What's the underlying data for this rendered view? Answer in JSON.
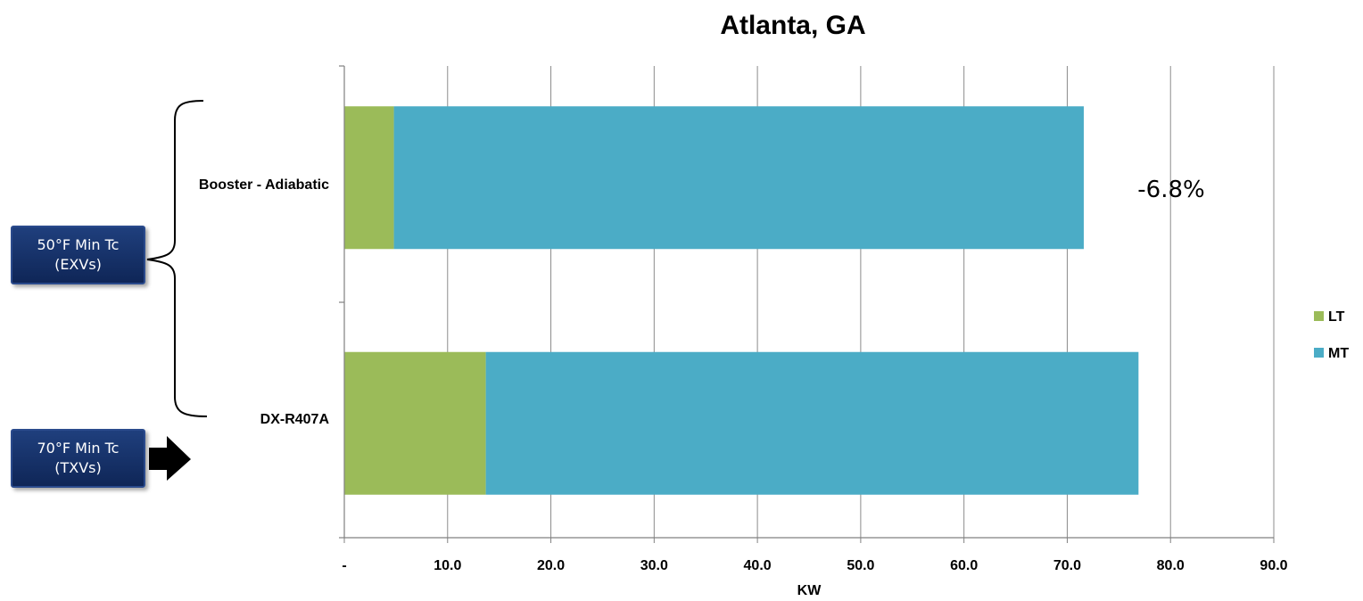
{
  "chart_data": {
    "type": "bar",
    "orientation": "horizontal",
    "stacked": true,
    "title": "Atlanta, GA",
    "xlabel": "KW",
    "ylabel": "",
    "xlim": [
      0,
      90
    ],
    "x_ticks": [
      "-",
      "10.0",
      "20.0",
      "30.0",
      "40.0",
      "50.0",
      "60.0",
      "70.0",
      "80.0",
      "90.0"
    ],
    "grid": "vertical",
    "legend_position": "right",
    "categories": [
      "Booster - Adiabatic",
      "DX-R407A"
    ],
    "series": [
      {
        "name": "LT",
        "color": "#9bbb59",
        "values": [
          4.8,
          13.7
        ]
      },
      {
        "name": "MT",
        "color": "#4bacc6",
        "values": [
          66.8,
          63.2
        ]
      }
    ],
    "annotations": [
      {
        "text": "-6.8%",
        "category": "Booster - Adiabatic"
      }
    ]
  },
  "callouts": {
    "top": {
      "line1": "50°F Min Tc",
      "line2": "(EXVs)"
    },
    "bottom": {
      "line1": "70°F  Min Tc",
      "line2": "(TXVs)"
    }
  }
}
